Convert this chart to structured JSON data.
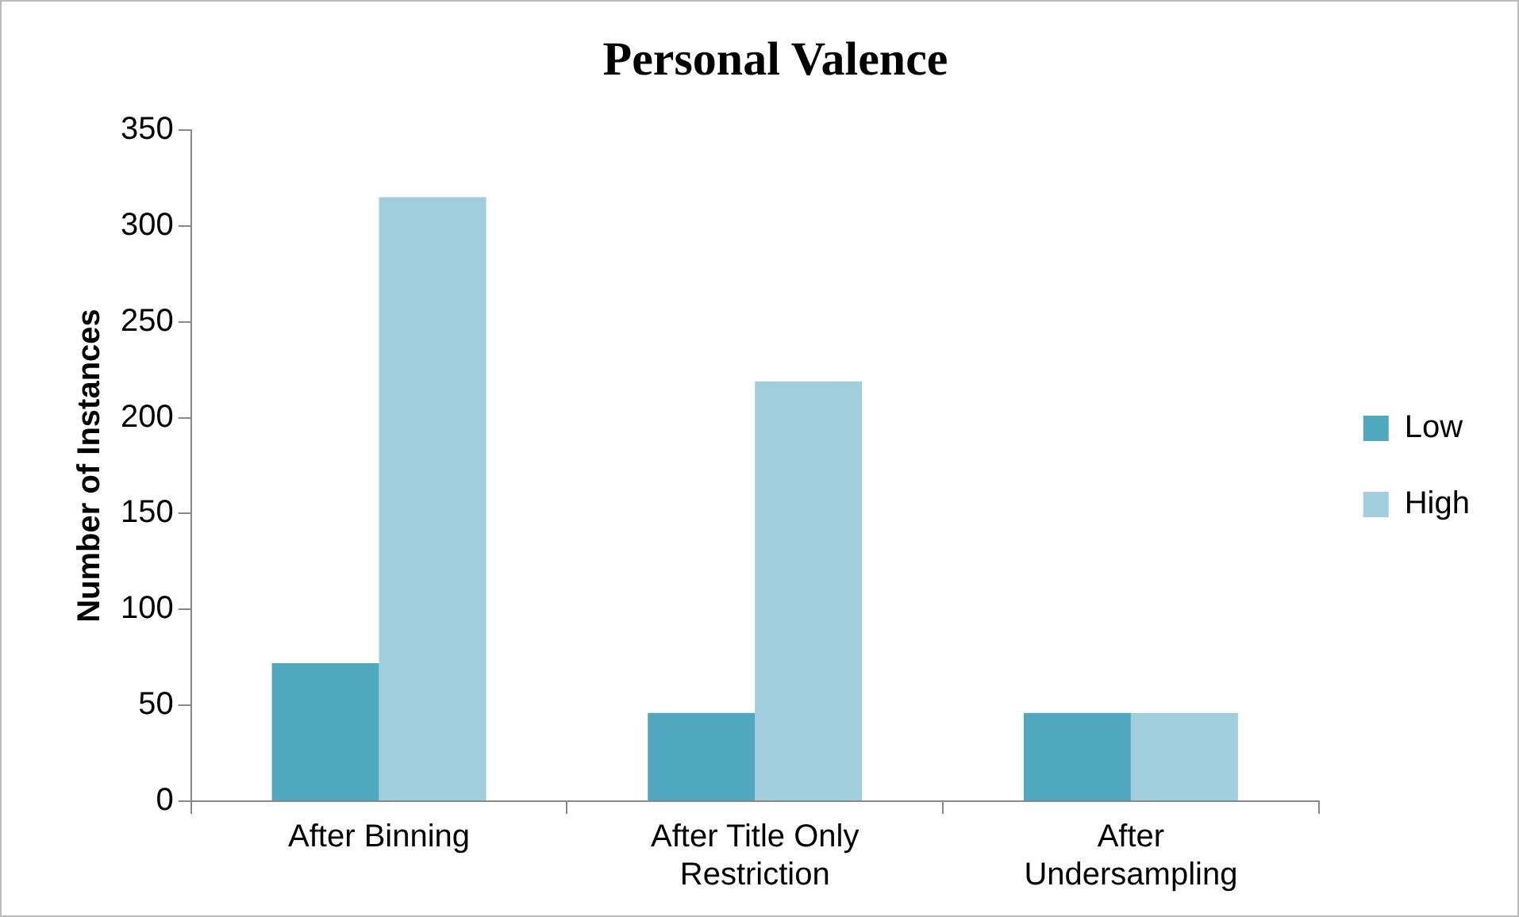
{
  "chart_data": {
    "type": "bar",
    "title": "Personal Valence",
    "ylabel": "Number of Instances",
    "categories": [
      "After Binning",
      "After Title Only Restriction",
      "After Undersampling"
    ],
    "series": [
      {
        "name": "Low",
        "color": "#4fa8be",
        "values": [
          72,
          46,
          46
        ]
      },
      {
        "name": "High",
        "color": "#a0cedd",
        "values": [
          315,
          219,
          46
        ]
      }
    ],
    "ylim": [
      0,
      350
    ],
    "yticks": [
      0,
      50,
      100,
      150,
      200,
      250,
      300,
      350
    ],
    "grid": false,
    "legend": "right"
  }
}
